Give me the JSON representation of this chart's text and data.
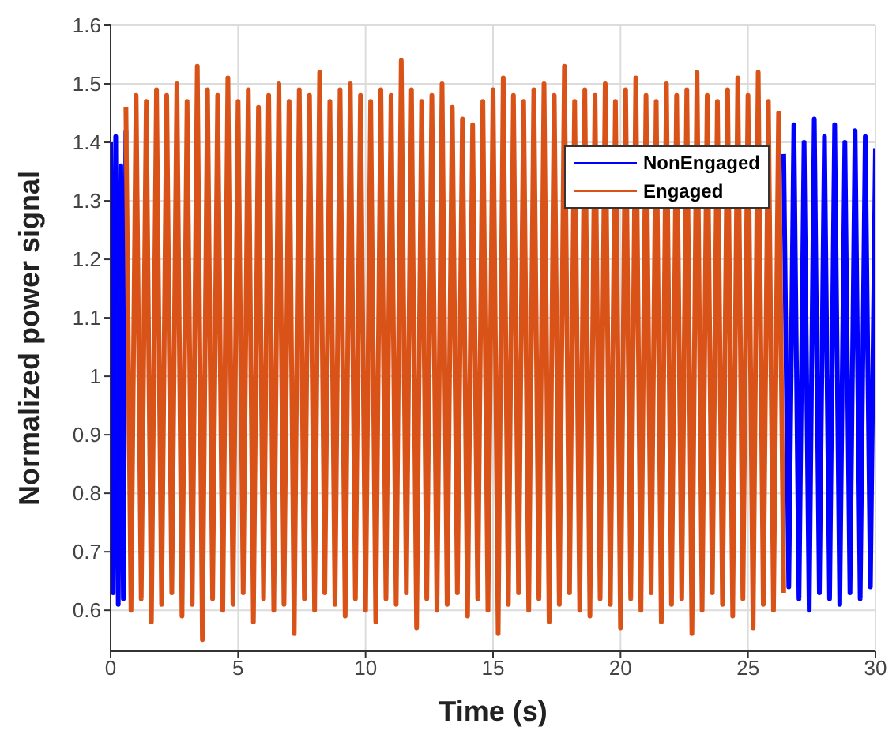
{
  "chart_data": {
    "type": "line",
    "xlabel": "Time (s)",
    "ylabel": "Normalized power signal",
    "xlim": [
      0,
      30
    ],
    "xticks": [
      0,
      5,
      10,
      15,
      20,
      25,
      30
    ],
    "ylim": [
      0.53,
      1.6
    ],
    "yticks": [
      0.6,
      0.7,
      0.8,
      0.9,
      1,
      1.1,
      1.2,
      1.3,
      1.4,
      1.5,
      1.6
    ],
    "grid": true,
    "legend": "top right",
    "marker": "none",
    "line_style": "solid",
    "series": [
      {
        "name": "NonEngaged",
        "color": "#0000ff",
        "x": [
          0,
          0.1,
          0.2,
          0.3,
          0.4,
          0.5,
          0.6,
          13,
          26.4,
          26.6,
          26.8,
          27,
          27.2,
          27.4,
          27.6,
          27.8,
          28,
          28.2,
          28.4,
          28.6,
          28.8,
          29,
          29.2,
          29.4,
          29.6,
          29.8,
          30
        ],
        "values": [
          1.4,
          0.63,
          1.41,
          0.61,
          1.36,
          0.62,
          1.42,
          null,
          1.38,
          0.64,
          1.43,
          0.62,
          1.4,
          0.6,
          1.44,
          0.63,
          1.41,
          0.62,
          1.43,
          0.61,
          1.4,
          0.63,
          1.42,
          0.62,
          1.41,
          0.64,
          1.39
        ]
      },
      {
        "name": "Engaged",
        "color": "#d95319",
        "x": [
          0.6,
          0.8,
          1,
          1.2,
          1.4,
          1.6,
          1.8,
          2,
          2.2,
          2.4,
          2.6,
          2.8,
          3,
          3.2,
          3.4,
          3.6,
          3.8,
          4,
          4.2,
          4.4,
          4.6,
          4.8,
          5,
          5.2,
          5.4,
          5.6,
          5.8,
          6,
          6.2,
          6.4,
          6.6,
          6.8,
          7,
          7.2,
          7.4,
          7.6,
          7.8,
          8,
          8.2,
          8.4,
          8.6,
          8.8,
          9,
          9.2,
          9.4,
          9.6,
          9.8,
          10,
          10.2,
          10.4,
          10.6,
          10.8,
          11,
          11.2,
          11.4,
          11.6,
          11.8,
          12,
          12.2,
          12.4,
          12.6,
          12.8,
          13,
          13.2,
          13.4,
          13.6,
          13.8,
          14,
          14.2,
          14.4,
          14.6,
          14.8,
          15,
          15.2,
          15.4,
          15.6,
          15.8,
          16,
          16.2,
          16.4,
          16.6,
          16.8,
          17,
          17.2,
          17.4,
          17.6,
          17.8,
          18,
          18.2,
          18.4,
          18.6,
          18.8,
          19,
          19.2,
          19.4,
          19.6,
          19.8,
          20,
          20.2,
          20.4,
          20.6,
          20.8,
          21,
          21.2,
          21.4,
          21.6,
          21.8,
          22,
          22.2,
          22.4,
          22.6,
          22.8,
          23,
          23.2,
          23.4,
          23.6,
          23.8,
          24,
          24.2,
          24.4,
          24.6,
          24.8,
          25,
          25.2,
          25.4,
          25.6,
          25.8,
          26,
          26.2,
          26.4
        ],
        "values": [
          1.46,
          0.6,
          1.48,
          0.62,
          1.47,
          0.58,
          1.49,
          0.61,
          1.48,
          0.63,
          1.5,
          0.59,
          1.47,
          0.61,
          1.53,
          0.55,
          1.49,
          0.62,
          1.48,
          0.6,
          1.51,
          0.61,
          1.47,
          0.63,
          1.49,
          0.58,
          1.46,
          0.62,
          1.48,
          0.6,
          1.5,
          0.61,
          1.47,
          0.56,
          1.49,
          0.62,
          1.48,
          0.6,
          1.52,
          0.63,
          1.47,
          0.61,
          1.49,
          0.59,
          1.5,
          0.62,
          1.48,
          0.6,
          1.47,
          0.58,
          1.49,
          0.62,
          1.48,
          0.61,
          1.54,
          0.63,
          1.49,
          0.57,
          1.47,
          0.62,
          1.48,
          0.6,
          1.5,
          0.61,
          1.46,
          0.63,
          1.44,
          0.59,
          1.43,
          0.62,
          1.47,
          0.6,
          1.49,
          0.56,
          1.51,
          0.61,
          1.48,
          0.63,
          1.47,
          0.6,
          1.49,
          0.62,
          1.5,
          0.58,
          1.48,
          0.61,
          1.53,
          0.63,
          1.47,
          0.6,
          1.49,
          0.59,
          1.48,
          0.62,
          1.5,
          0.61,
          1.47,
          0.57,
          1.49,
          0.62,
          1.51,
          0.6,
          1.48,
          0.63,
          1.47,
          0.58,
          1.5,
          0.61,
          1.48,
          0.62,
          1.49,
          0.56,
          1.52,
          0.6,
          1.48,
          0.63,
          1.47,
          0.61,
          1.49,
          0.59,
          1.51,
          0.62,
          1.48,
          0.57,
          1.52,
          0.61,
          1.47,
          0.6,
          1.45,
          0.63
        ]
      }
    ]
  }
}
